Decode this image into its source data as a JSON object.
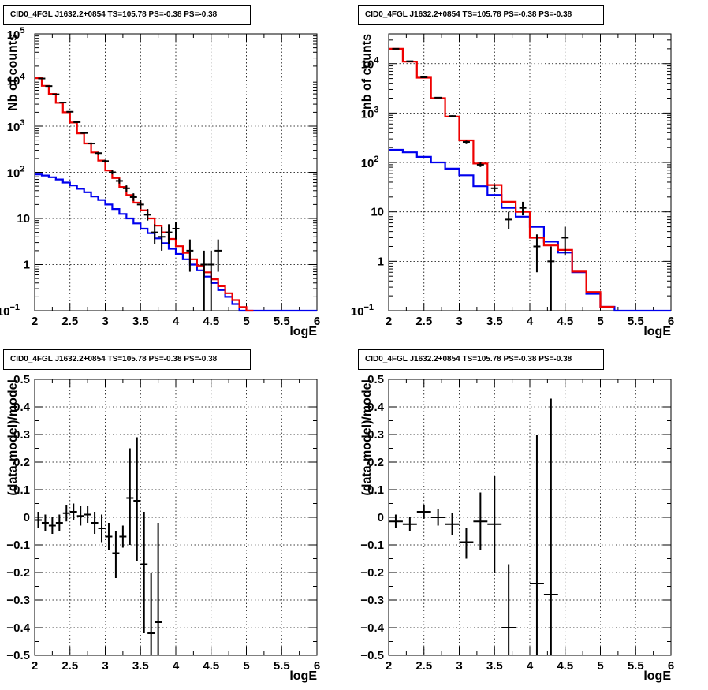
{
  "panels": [
    {
      "title": "CID0_4FGL J1632.2+0854 TS=105.78 PS=-0.38 PS=-0.38",
      "chart_data": {
        "type": "line",
        "xlabel": "logE",
        "ylabel": "Nb of counts",
        "xlim": [
          2,
          6
        ],
        "ylim": [
          0.1,
          100000
        ],
        "log_y": true,
        "grid": true,
        "xticks": [
          "2",
          "2.5",
          "3",
          "3.5",
          "4",
          "4.5",
          "5",
          "5.5",
          "6"
        ],
        "yticks": [
          {
            "v": 0.1,
            "base": "10",
            "exp": "−1"
          },
          {
            "v": 1,
            "label": "1"
          },
          {
            "v": 10,
            "label": "10"
          },
          {
            "v": 100,
            "base": "10",
            "exp": "2"
          },
          {
            "v": 1000,
            "base": "10",
            "exp": "3"
          },
          {
            "v": 10000,
            "base": "10",
            "exp": "4"
          },
          {
            "v": 100000,
            "base": "10",
            "exp": "5"
          }
        ],
        "series": [
          {
            "color": "#0000ee",
            "style": "hist",
            "x": [
              2.0,
              2.1,
              2.2,
              2.3,
              2.4,
              2.5,
              2.6,
              2.7,
              2.8,
              2.9,
              3.0,
              3.1,
              3.2,
              3.3,
              3.4,
              3.5,
              3.6,
              3.7,
              3.8,
              3.9,
              4.0,
              4.1,
              4.2,
              4.3,
              4.4,
              4.5,
              4.6,
              4.7,
              4.8,
              4.9,
              5.0,
              5.1,
              5.2,
              5.3,
              5.4,
              5.5,
              5.6,
              5.7,
              5.8,
              5.9
            ],
            "values": [
              90,
              85,
              78,
              70,
              60,
              52,
              44,
              37,
              30,
              25,
              20,
              16,
              12.5,
              10,
              7.8,
              6,
              4.8,
              3.7,
              2.9,
              2.2,
              1.7,
              1.3,
              1.0,
              0.75,
              0.55,
              0.4,
              0.28,
              0.2,
              0.14,
              0.1,
              0.1,
              0.1,
              0.1,
              0.1,
              0.1,
              0.1,
              0.1,
              0.1,
              0.1,
              0.1
            ]
          },
          {
            "color": "#ee0000",
            "style": "hist",
            "x": [
              2.0,
              2.1,
              2.2,
              2.3,
              2.4,
              2.5,
              2.6,
              2.7,
              2.8,
              2.9,
              3.0,
              3.1,
              3.2,
              3.3,
              3.4,
              3.5,
              3.6,
              3.7,
              3.8,
              3.9,
              4.0,
              4.1,
              4.2,
              4.3,
              4.4,
              4.5,
              4.6,
              4.7,
              4.8,
              4.9,
              5.0
            ],
            "values": [
              11000,
              7500,
              5000,
              3200,
              2000,
              1200,
              700,
              420,
              270,
              180,
              110,
              75,
              48,
              32,
              22,
              15,
              10,
              7,
              5,
              3.6,
              2.5,
              1.8,
              1.3,
              0.95,
              0.68,
              0.48,
              0.34,
              0.24,
              0.17,
              0.12,
              0.1
            ]
          },
          {
            "color": "#000000",
            "style": "points",
            "points": [
              {
                "x": 2.1,
                "y": 10800,
                "lo": 10700,
                "hi": 10900
              },
              {
                "x": 2.2,
                "y": 7400,
                "lo": 7320,
                "hi": 7480
              },
              {
                "x": 2.3,
                "y": 4900,
                "lo": 4830,
                "hi": 4970
              },
              {
                "x": 2.4,
                "y": 3250,
                "lo": 3190,
                "hi": 3310
              },
              {
                "x": 2.5,
                "y": 2050,
                "lo": 2000,
                "hi": 2100
              },
              {
                "x": 2.6,
                "y": 1220,
                "lo": 1180,
                "hi": 1260
              },
              {
                "x": 2.7,
                "y": 710,
                "lo": 680,
                "hi": 740
              },
              {
                "x": 2.8,
                "y": 420,
                "lo": 400,
                "hi": 440
              },
              {
                "x": 2.9,
                "y": 260,
                "lo": 244,
                "hi": 276
              },
              {
                "x": 3.0,
                "y": 175,
                "lo": 162,
                "hi": 188
              },
              {
                "x": 3.1,
                "y": 100,
                "lo": 90,
                "hi": 110
              },
              {
                "x": 3.2,
                "y": 65,
                "lo": 57,
                "hi": 73
              },
              {
                "x": 3.3,
                "y": 45,
                "lo": 38,
                "hi": 52
              },
              {
                "x": 3.4,
                "y": 29,
                "lo": 24,
                "hi": 35
              },
              {
                "x": 3.5,
                "y": 20,
                "lo": 16,
                "hi": 25
              },
              {
                "x": 3.6,
                "y": 12,
                "lo": 9,
                "hi": 16
              },
              {
                "x": 3.7,
                "y": 5,
                "lo": 2.8,
                "hi": 7.5
              },
              {
                "x": 3.8,
                "y": 4,
                "lo": 2,
                "hi": 6.5
              },
              {
                "x": 3.9,
                "y": 5,
                "lo": 2.8,
                "hi": 7.5
              },
              {
                "x": 4.0,
                "y": 6,
                "lo": 3.5,
                "hi": 8.5
              },
              {
                "x": 4.2,
                "y": 2,
                "lo": 0.7,
                "hi": 3.5
              },
              {
                "x": 4.4,
                "y": 1,
                "lo": 0.1,
                "hi": 2
              },
              {
                "x": 4.5,
                "y": 1,
                "lo": 0.1,
                "hi": 2
              },
              {
                "x": 4.6,
                "y": 2,
                "lo": 0.7,
                "hi": 3.5
              }
            ]
          }
        ]
      }
    },
    {
      "title": "CID0_4FGL J1632.2+0854 TS=105.78 PS=-0.38 PS=-0.38",
      "chart_data": {
        "type": "line",
        "xlabel": "logE",
        "ylabel": "nb of counts",
        "xlim": [
          2,
          6
        ],
        "ylim": [
          0.1,
          40000
        ],
        "log_y": true,
        "grid": true,
        "xticks": [
          "2",
          "2.5",
          "3",
          "3.5",
          "4",
          "4.5",
          "5",
          "5.5",
          "6"
        ],
        "yticks": [
          {
            "v": 0.1,
            "base": "10",
            "exp": "−1"
          },
          {
            "v": 1,
            "label": "1"
          },
          {
            "v": 10,
            "label": "10"
          },
          {
            "v": 100,
            "base": "10",
            "exp": "2"
          },
          {
            "v": 1000,
            "base": "10",
            "exp": "3"
          },
          {
            "v": 10000,
            "base": "10",
            "exp": "4"
          }
        ],
        "series": [
          {
            "color": "#0000ee",
            "style": "hist",
            "x": [
              2.0,
              2.2,
              2.4,
              2.6,
              2.8,
              3.0,
              3.2,
              3.4,
              3.6,
              3.8,
              4.0,
              4.2,
              4.4,
              4.6,
              4.8,
              5.0,
              5.2,
              5.4,
              5.6,
              5.8
            ],
            "values": [
              180,
              160,
              130,
              100,
              75,
              55,
              33,
              22,
              12,
              8,
              5,
              2.5,
              1.5,
              0.6,
              0.22,
              0.12,
              0.1,
              0.1,
              0.1,
              0.1
            ]
          },
          {
            "color": "#ee0000",
            "style": "hist",
            "x": [
              2.0,
              2.2,
              2.4,
              2.6,
              2.8,
              3.0,
              3.2,
              3.4,
              3.6,
              3.8,
              4.0,
              4.2,
              4.4,
              4.6,
              4.8,
              5.0
            ],
            "values": [
              20000,
              11000,
              5200,
              2000,
              850,
              280,
              95,
              35,
              16,
              10,
              3,
              2.1,
              1.7,
              0.62,
              0.24,
              0.12
            ]
          },
          {
            "color": "#000000",
            "style": "points",
            "points": [
              {
                "x": 2.1,
                "y": 20000,
                "lo": 19800,
                "hi": 20200
              },
              {
                "x": 2.3,
                "y": 11200,
                "lo": 11000,
                "hi": 11400
              },
              {
                "x": 2.5,
                "y": 5300,
                "lo": 5200,
                "hi": 5400
              },
              {
                "x": 2.7,
                "y": 2050,
                "lo": 2000,
                "hi": 2100
              },
              {
                "x": 2.9,
                "y": 870,
                "lo": 840,
                "hi": 900
              },
              {
                "x": 3.1,
                "y": 260,
                "lo": 244,
                "hi": 276
              },
              {
                "x": 3.3,
                "y": 90,
                "lo": 81,
                "hi": 100
              },
              {
                "x": 3.5,
                "y": 30,
                "lo": 25,
                "hi": 36
              },
              {
                "x": 3.7,
                "y": 7,
                "lo": 4.5,
                "hi": 10
              },
              {
                "x": 3.9,
                "y": 12,
                "lo": 8.5,
                "hi": 16
              },
              {
                "x": 4.1,
                "y": 2,
                "lo": 0.6,
                "hi": 3.5
              },
              {
                "x": 4.3,
                "y": 1,
                "lo": 0.1,
                "hi": 2
              },
              {
                "x": 4.5,
                "y": 3,
                "lo": 1.3,
                "hi": 5
              }
            ]
          }
        ]
      }
    },
    {
      "title": "CID0_4FGL J1632.2+0854 TS=105.78 PS=-0.38 PS=-0.38",
      "chart_data": {
        "type": "scatter",
        "xlabel": "logE",
        "ylabel": "(data-model)/model",
        "xlim": [
          2,
          6
        ],
        "ylim": [
          -0.5,
          0.5
        ],
        "log_y": false,
        "grid": true,
        "xticks": [
          "2",
          "2.5",
          "3",
          "3.5",
          "4",
          "4.5",
          "5",
          "5.5",
          "6"
        ],
        "yticks": [
          {
            "v": -0.5,
            "label": "−0.5"
          },
          {
            "v": -0.4,
            "label": "−0.4"
          },
          {
            "v": -0.3,
            "label": "−0.3"
          },
          {
            "v": -0.2,
            "label": "−0.2"
          },
          {
            "v": -0.1,
            "label": "−0.1"
          },
          {
            "v": 0,
            "label": "0"
          },
          {
            "v": 0.1,
            "label": "0.1"
          },
          {
            "v": 0.2,
            "label": "0.2"
          },
          {
            "v": 0.3,
            "label": "0.3"
          },
          {
            "v": 0.4,
            "label": "0.4"
          },
          {
            "v": 0.5,
            "label": "0.5"
          }
        ],
        "series": [
          {
            "color": "#000000",
            "style": "points",
            "xerr": 0.05,
            "points": [
              {
                "x": 2.05,
                "y": -0.01,
                "lo": -0.04,
                "hi": 0.02
              },
              {
                "x": 2.15,
                "y": -0.02,
                "lo": -0.05,
                "hi": 0.01
              },
              {
                "x": 2.25,
                "y": -0.03,
                "lo": -0.06,
                "hi": 0.0
              },
              {
                "x": 2.35,
                "y": -0.02,
                "lo": -0.05,
                "hi": 0.01
              },
              {
                "x": 2.45,
                "y": 0.015,
                "lo": -0.015,
                "hi": 0.045
              },
              {
                "x": 2.55,
                "y": 0.02,
                "lo": -0.01,
                "hi": 0.05
              },
              {
                "x": 2.65,
                "y": 0.005,
                "lo": -0.03,
                "hi": 0.04
              },
              {
                "x": 2.75,
                "y": 0.01,
                "lo": -0.02,
                "hi": 0.04
              },
              {
                "x": 2.85,
                "y": -0.02,
                "lo": -0.06,
                "hi": 0.02
              },
              {
                "x": 2.95,
                "y": -0.04,
                "lo": -0.09,
                "hi": 0.01
              },
              {
                "x": 3.05,
                "y": -0.07,
                "lo": -0.12,
                "hi": -0.02
              },
              {
                "x": 3.15,
                "y": -0.13,
                "lo": -0.22,
                "hi": -0.05
              },
              {
                "x": 3.25,
                "y": -0.07,
                "lo": -0.11,
                "hi": -0.03
              },
              {
                "x": 3.35,
                "y": 0.07,
                "lo": -0.1,
                "hi": 0.25
              },
              {
                "x": 3.45,
                "y": 0.06,
                "lo": -0.16,
                "hi": 0.29
              },
              {
                "x": 3.55,
                "y": -0.17,
                "lo": -0.42,
                "hi": 0.02
              },
              {
                "x": 3.65,
                "y": -0.42,
                "lo": -0.5,
                "hi": -0.2
              },
              {
                "x": 3.75,
                "y": -0.38,
                "lo": -0.5,
                "hi": -0.02
              }
            ]
          }
        ]
      }
    },
    {
      "title": "CID0_4FGL J1632.2+0854 TS=105.78 PS=-0.38 PS=-0.38",
      "chart_data": {
        "type": "scatter",
        "xlabel": "logE",
        "ylabel": "(data-model)/model",
        "xlim": [
          2,
          6
        ],
        "ylim": [
          -0.5,
          0.5
        ],
        "log_y": false,
        "grid": true,
        "xticks": [
          "2",
          "2.5",
          "3",
          "3.5",
          "4",
          "4.5",
          "5",
          "5.5",
          "6"
        ],
        "yticks": [
          {
            "v": -0.5,
            "label": "−0.5"
          },
          {
            "v": -0.4,
            "label": "−0.4"
          },
          {
            "v": -0.3,
            "label": "−0.3"
          },
          {
            "v": -0.2,
            "label": "−0.2"
          },
          {
            "v": -0.1,
            "label": "−0.1"
          },
          {
            "v": 0,
            "label": "0"
          },
          {
            "v": 0.1,
            "label": "0.1"
          },
          {
            "v": 0.2,
            "label": "0.2"
          },
          {
            "v": 0.3,
            "label": "0.3"
          },
          {
            "v": 0.4,
            "label": "0.4"
          },
          {
            "v": 0.5,
            "label": "0.5"
          }
        ],
        "series": [
          {
            "color": "#000000",
            "style": "points",
            "xerr": 0.1,
            "points": [
              {
                "x": 2.1,
                "y": -0.015,
                "lo": -0.04,
                "hi": 0.01
              },
              {
                "x": 2.3,
                "y": -0.025,
                "lo": -0.05,
                "hi": 0.0
              },
              {
                "x": 2.5,
                "y": 0.02,
                "lo": -0.005,
                "hi": 0.045
              },
              {
                "x": 2.7,
                "y": 0.0,
                "lo": -0.03,
                "hi": 0.03
              },
              {
                "x": 2.9,
                "y": -0.025,
                "lo": -0.065,
                "hi": 0.015
              },
              {
                "x": 3.1,
                "y": -0.09,
                "lo": -0.15,
                "hi": -0.04
              },
              {
                "x": 3.3,
                "y": -0.015,
                "lo": -0.12,
                "hi": 0.09
              },
              {
                "x": 3.5,
                "y": -0.025,
                "lo": -0.2,
                "hi": 0.15
              },
              {
                "x": 3.7,
                "y": -0.4,
                "lo": -0.5,
                "hi": -0.17
              },
              {
                "x": 4.1,
                "y": -0.24,
                "lo": -0.5,
                "hi": 0.3
              },
              {
                "x": 4.3,
                "y": -0.28,
                "lo": -0.5,
                "hi": 0.43
              }
            ]
          }
        ]
      }
    }
  ]
}
